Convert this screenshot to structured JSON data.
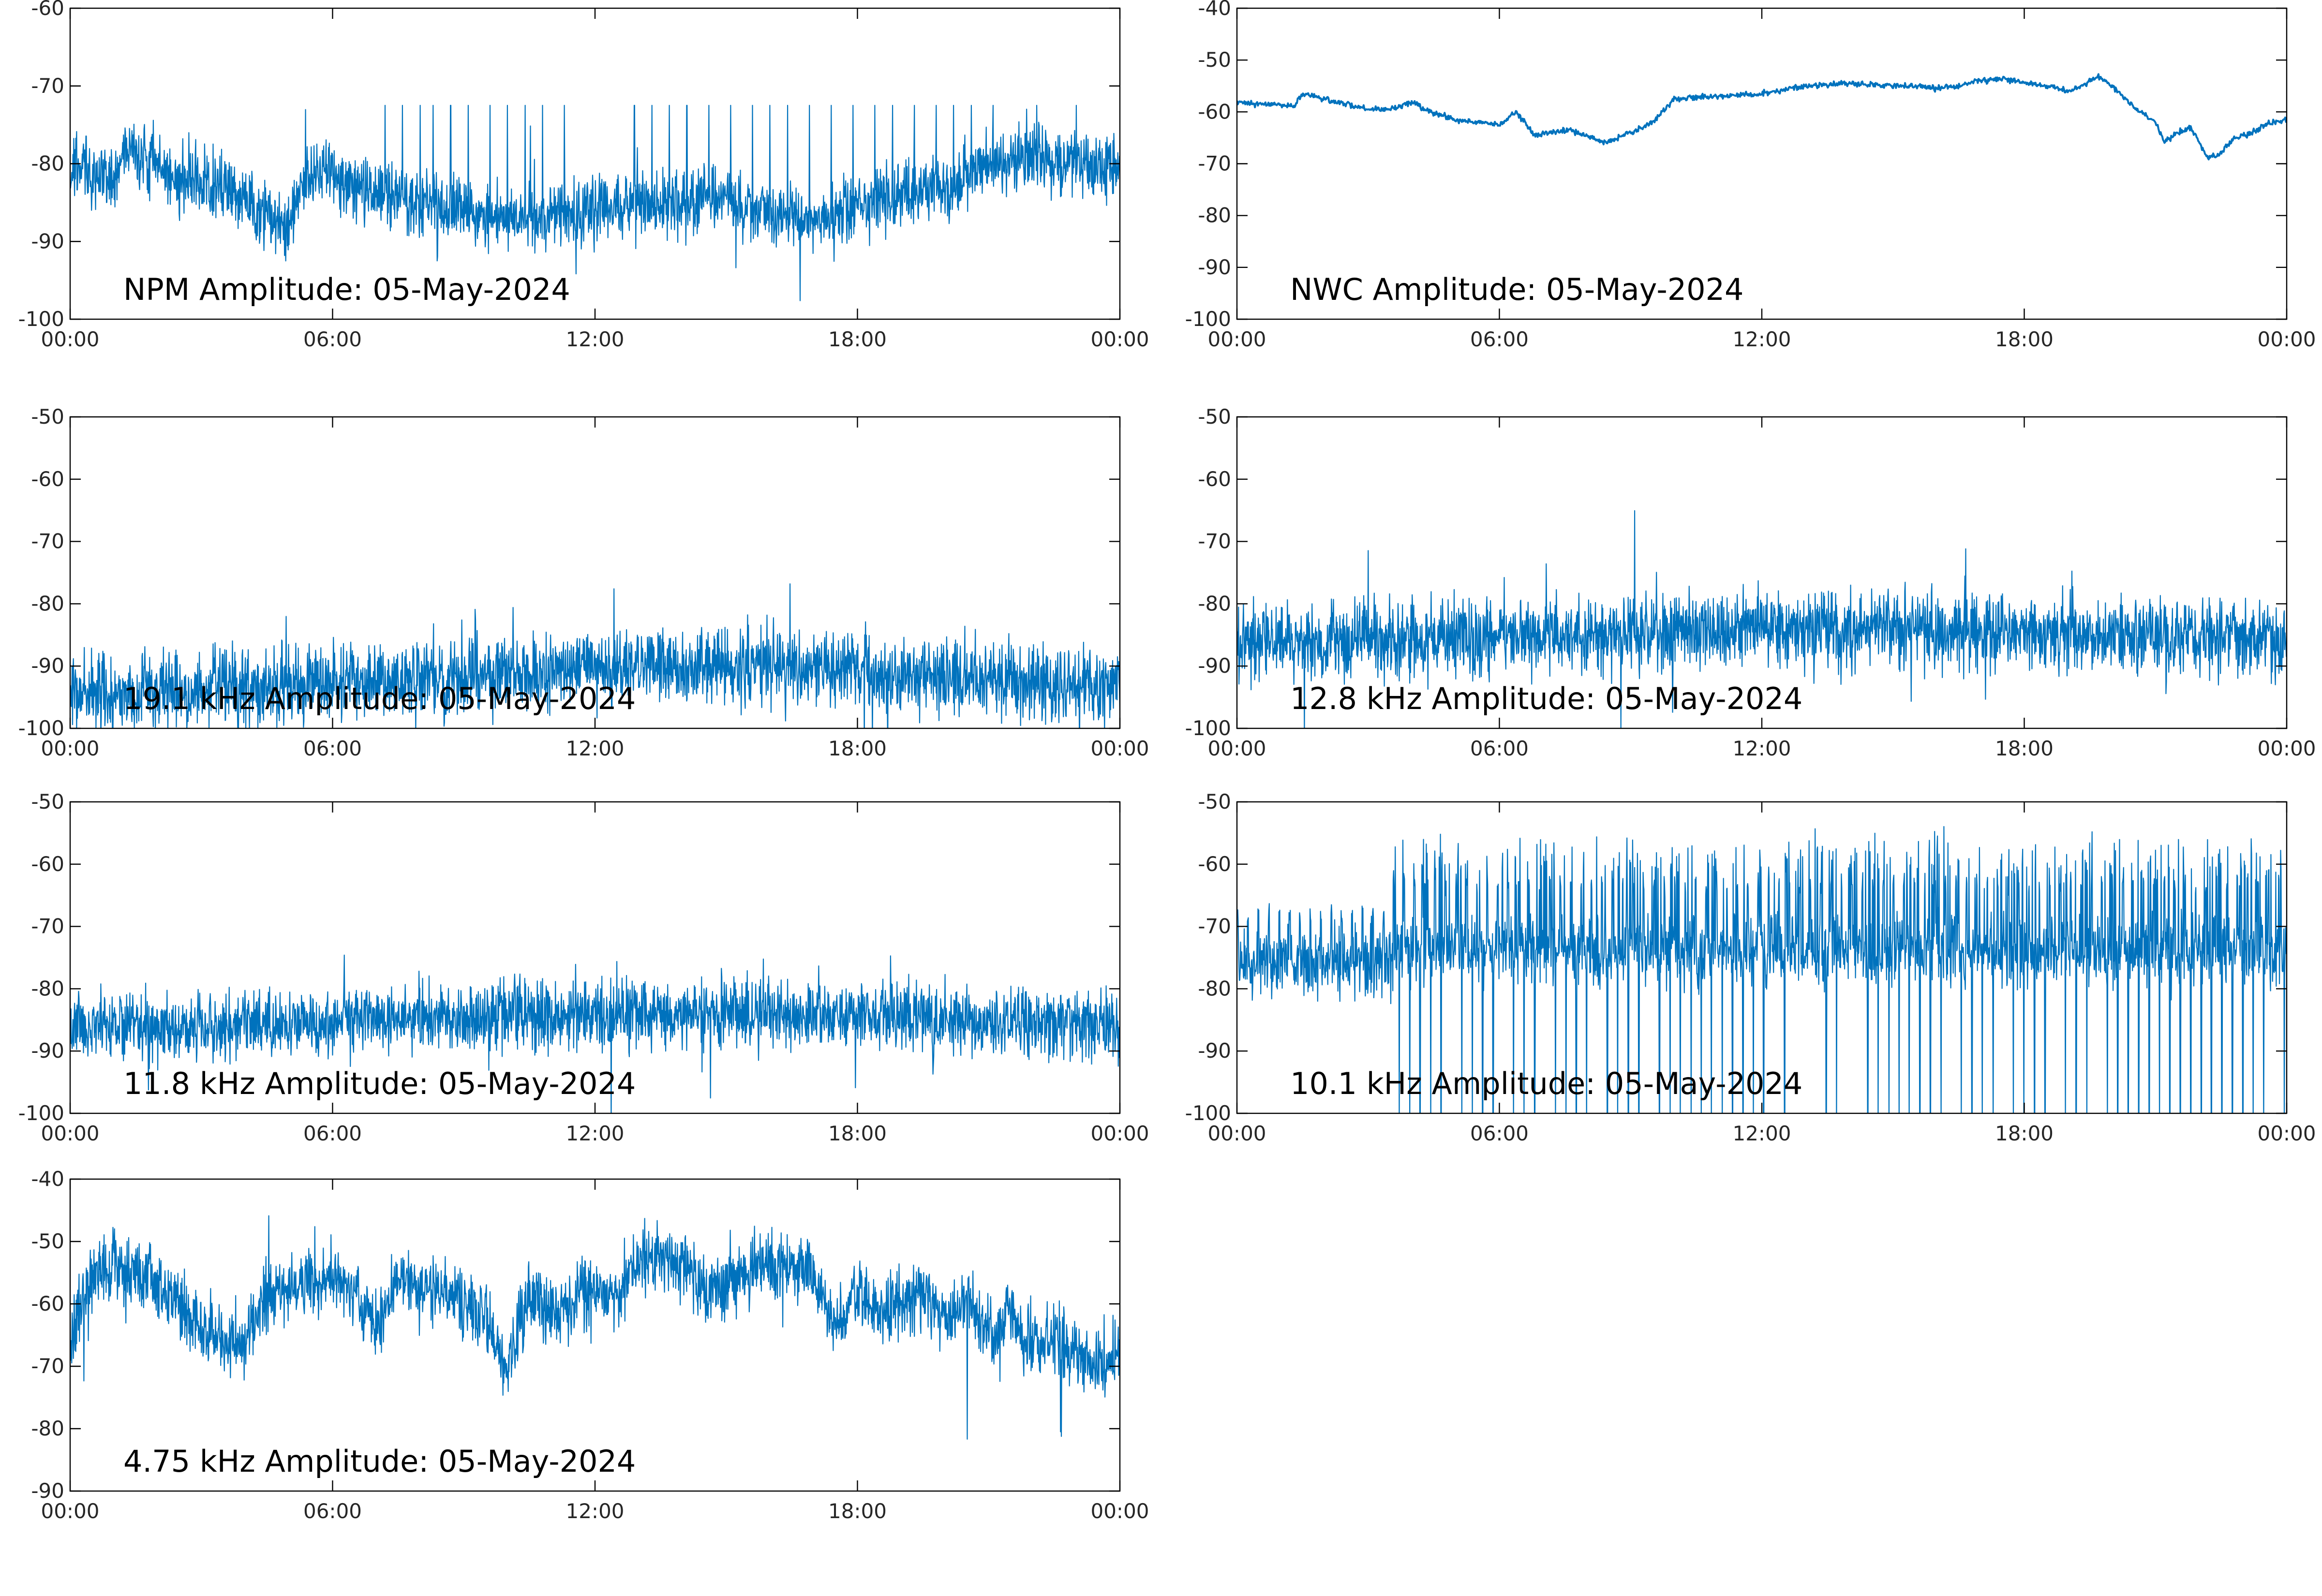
{
  "figure": {
    "background": "#ffffff",
    "line_color": "#0072bd"
  },
  "chart_data": [
    {
      "type": "line",
      "title": "NPM Amplitude: 05-May-2024",
      "xlabel": "",
      "ylabel": "",
      "xlim": [
        0,
        24
      ],
      "xticks": [
        0,
        6,
        12,
        18,
        24
      ],
      "xticklabels": [
        "00:00",
        "06:00",
        "12:00",
        "18:00",
        "00:00"
      ],
      "ylim": [
        -100,
        -60
      ],
      "yticks": [
        -100,
        -90,
        -80,
        -70,
        -60
      ],
      "yticklabels": [
        "-100",
        "-90",
        "-80",
        "-70",
        "-60"
      ],
      "grid": false,
      "series": [
        {
          "color": "#0072bd",
          "shape": "noisy",
          "x": [
            0,
            0.5,
            1.0,
            1.3,
            1.5,
            2.0,
            2.5,
            3.0,
            3.5,
            4.0,
            4.5,
            5.0,
            5.3,
            5.6,
            6.0,
            7.0,
            8.0,
            9.0,
            10.0,
            11.0,
            12.0,
            13.0,
            14.0,
            15.0,
            16.0,
            16.8,
            17.5,
            18.0,
            19.0,
            20.0,
            21.0,
            22.0,
            23.0,
            24.0
          ],
          "y": [
            -80,
            -81,
            -82,
            -78.5,
            -79,
            -80,
            -82,
            -83,
            -83,
            -85,
            -87,
            -88,
            -82,
            -81,
            -82,
            -84,
            -85,
            -86,
            -87,
            -87,
            -86,
            -85,
            -85,
            -85,
            -86,
            -87,
            -87,
            -85,
            -84,
            -83,
            -80,
            -79,
            -80,
            -81
          ],
          "noise": 3,
          "spikes_up_hours": [
            7.2,
            7.6,
            8.0,
            8.3,
            8.7,
            9.1,
            9.6,
            10.0,
            10.4,
            10.8,
            11.3,
            12.9,
            13.3,
            13.7,
            14.1,
            14.6,
            15.1,
            15.6,
            16.0,
            16.4,
            16.9,
            17.4,
            17.9,
            18.4,
            18.8,
            19.3,
            19.8,
            20.2,
            20.6,
            21.1,
            22.1,
            23.0
          ],
          "spike_top": -72.5
        }
      ]
    },
    {
      "type": "line",
      "title": "NWC Amplitude: 05-May-2024",
      "xlabel": "",
      "ylabel": "",
      "xlim": [
        0,
        24
      ],
      "xticks": [
        0,
        6,
        12,
        18,
        24
      ],
      "xticklabels": [
        "00:00",
        "06:00",
        "12:00",
        "18:00",
        "00:00"
      ],
      "ylim": [
        -100,
        -40
      ],
      "yticks": [
        -100,
        -90,
        -80,
        -70,
        -60,
        -50,
        -40
      ],
      "yticklabels": [
        "-100",
        "-90",
        "-80",
        "-70",
        "-60",
        "-50",
        "-40"
      ],
      "grid": false,
      "series": [
        {
          "color": "#0072bd",
          "shape": "smooth",
          "x": [
            0,
            0.5,
            1.0,
            1.3,
            1.5,
            2.0,
            2.5,
            3.0,
            3.5,
            4.0,
            4.5,
            4.6,
            5.0,
            5.5,
            6.0,
            6.4,
            6.8,
            7.2,
            7.6,
            8.0,
            8.4,
            9.0,
            9.5,
            10.0,
            11.0,
            12.0,
            13.0,
            14.0,
            15.0,
            15.5,
            16.0,
            16.5,
            17.0,
            17.5,
            18.0,
            18.5,
            19.0,
            19.3,
            19.7,
            20.0,
            20.5,
            21.0,
            21.2,
            21.5,
            21.8,
            22.2,
            22.5,
            22.8,
            23.2,
            23.5,
            24.0
          ],
          "y": [
            -58,
            -58.5,
            -58.5,
            -59,
            -56.5,
            -57.5,
            -58.5,
            -59.5,
            -59.5,
            -58,
            -60.5,
            -60.5,
            -61.5,
            -62,
            -62.5,
            -60,
            -64.5,
            -64,
            -63.5,
            -64.5,
            -66,
            -64,
            -62,
            -57.5,
            -57,
            -56.5,
            -55,
            -54.5,
            -55,
            -55,
            -55.5,
            -55,
            -54,
            -53.5,
            -54.5,
            -55,
            -56,
            -55,
            -53,
            -55,
            -59,
            -62,
            -66,
            -64,
            -63,
            -69,
            -68,
            -65,
            -64,
            -62.5,
            -61.5
          ],
          "noise": 0.4
        }
      ]
    },
    {
      "type": "line",
      "title": "19.1 kHz Amplitude: 05-May-2024",
      "xlabel": "",
      "ylabel": "",
      "xlim": [
        0,
        24
      ],
      "xticks": [
        0,
        6,
        12,
        18,
        24
      ],
      "xticklabels": [
        "00:00",
        "06:00",
        "12:00",
        "18:00",
        "00:00"
      ],
      "ylim": [
        -100,
        -50
      ],
      "yticks": [
        -100,
        -90,
        -80,
        -70,
        -60,
        -50
      ],
      "yticklabels": [
        "-100",
        "-90",
        "-80",
        "-70",
        "-60",
        "-50"
      ],
      "grid": false,
      "series": [
        {
          "color": "#0072bd",
          "shape": "noisy",
          "x": [
            0,
            3,
            6,
            9,
            12,
            15,
            18,
            21,
            24
          ],
          "y": [
            -94,
            -94,
            -93,
            -92,
            -90,
            -90,
            -91,
            -92,
            -93
          ],
          "noise": 4.5
        }
      ]
    },
    {
      "type": "line",
      "title": "12.8 kHz Amplitude: 05-May-2024",
      "xlabel": "",
      "ylabel": "",
      "xlim": [
        0,
        24
      ],
      "xticks": [
        0,
        6,
        12,
        18,
        24
      ],
      "xticklabels": [
        "00:00",
        "06:00",
        "12:00",
        "18:00",
        "00:00"
      ],
      "ylim": [
        -100,
        -50
      ],
      "yticks": [
        -100,
        -90,
        -80,
        -70,
        -60,
        -50
      ],
      "yticklabels": [
        "-100",
        "-90",
        "-80",
        "-70",
        "-60",
        "-50"
      ],
      "grid": false,
      "series": [
        {
          "color": "#0072bd",
          "shape": "noisy",
          "x": [
            0,
            3,
            6,
            9,
            12,
            15,
            18,
            21,
            24
          ],
          "y": [
            -86,
            -86,
            -85.5,
            -85,
            -84,
            -84,
            -84.5,
            -85,
            -85.5
          ],
          "noise": 4.5
        }
      ]
    },
    {
      "type": "line",
      "title": "11.8 kHz Amplitude: 05-May-2024",
      "xlabel": "",
      "ylabel": "",
      "xlim": [
        0,
        24
      ],
      "xticks": [
        0,
        6,
        12,
        18,
        24
      ],
      "xticklabels": [
        "00:00",
        "06:00",
        "12:00",
        "18:00",
        "00:00"
      ],
      "ylim": [
        -100,
        -50
      ],
      "yticks": [
        -100,
        -90,
        -80,
        -70,
        -60,
        -50
      ],
      "yticklabels": [
        "-100",
        "-90",
        "-80",
        "-70",
        "-60",
        "-50"
      ],
      "grid": false,
      "series": [
        {
          "color": "#0072bd",
          "shape": "noisy",
          "x": [
            0,
            3,
            6,
            9,
            12,
            15,
            18,
            21,
            24
          ],
          "y": [
            -86,
            -86,
            -85.5,
            -84.5,
            -84,
            -84,
            -84.5,
            -85.5,
            -86
          ],
          "noise": 4
        }
      ]
    },
    {
      "type": "line",
      "title": "10.1 kHz Amplitude: 05-May-2024",
      "xlabel": "",
      "ylabel": "",
      "xlim": [
        0,
        24
      ],
      "xticks": [
        0,
        6,
        12,
        18,
        24
      ],
      "xticklabels": [
        "00:00",
        "06:00",
        "12:00",
        "18:00",
        "00:00"
      ],
      "ylim": [
        -100,
        -50
      ],
      "yticks": [
        -100,
        -90,
        -80,
        -70,
        -60,
        -50
      ],
      "yticklabels": [
        "-100",
        "-90",
        "-80",
        "-70",
        "-60",
        "-50"
      ],
      "grid": false,
      "series": [
        {
          "color": "#0072bd",
          "shape": "bursty",
          "x": [
            0,
            3.5,
            3.6,
            24
          ],
          "y": [
            -76,
            -76,
            -74,
            -74
          ],
          "noise": 4,
          "burst_start_hour": 3.5,
          "burst_high": -63,
          "burst_low": -100
        }
      ]
    },
    {
      "type": "line",
      "title": "4.75 kHz Amplitude: 05-May-2024",
      "xlabel": "",
      "ylabel": "",
      "xlim": [
        0,
        24
      ],
      "xticks": [
        0,
        6,
        12,
        18,
        24
      ],
      "xticklabels": [
        "00:00",
        "06:00",
        "12:00",
        "18:00",
        "00:00"
      ],
      "ylim": [
        -90,
        -40
      ],
      "yticks": [
        -90,
        -80,
        -70,
        -60,
        -50,
        -40
      ],
      "yticklabels": [
        "-90",
        "-80",
        "-70",
        "-60",
        "-50",
        "-40"
      ],
      "grid": false,
      "series": [
        {
          "color": "#0072bd",
          "shape": "noisy",
          "x": [
            0,
            0.3,
            0.6,
            1.0,
            1.5,
            2.0,
            2.5,
            3.0,
            3.5,
            4.0,
            4.5,
            5.0,
            5.5,
            6.0,
            6.5,
            7.0,
            7.5,
            8.0,
            8.5,
            9.0,
            9.5,
            10.0,
            10.5,
            11.0,
            11.5,
            12.0,
            12.5,
            13.0,
            13.5,
            14.0,
            14.5,
            15.0,
            15.5,
            16.0,
            16.5,
            17.0,
            17.5,
            18.0,
            18.5,
            19.0,
            19.5,
            20.0,
            20.5,
            21.0,
            21.5,
            22.0,
            22.5,
            23.0,
            23.5,
            24.0
          ],
          "y": [
            -66,
            -58,
            -55,
            -54,
            -55,
            -57,
            -60,
            -64,
            -66,
            -66,
            -58,
            -58,
            -57,
            -56,
            -58,
            -64,
            -56,
            -57,
            -58,
            -60,
            -62,
            -70,
            -58,
            -62,
            -60,
            -57,
            -58,
            -53,
            -52,
            -53,
            -58,
            -57,
            -55,
            -53,
            -54,
            -55,
            -64,
            -58,
            -62,
            -60,
            -58,
            -62,
            -60,
            -64,
            -62,
            -66,
            -66,
            -68,
            -70,
            -68
          ],
          "noise": 4
        }
      ]
    }
  ]
}
